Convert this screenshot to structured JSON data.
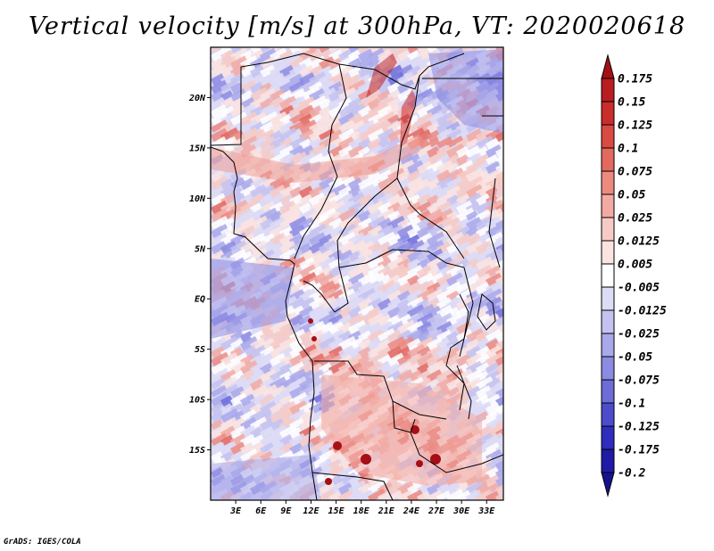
{
  "title": "Vertical velocity [m/s] at 300hPa, VT: 2020020618",
  "credit": "GrADS: IGES/COLA",
  "map": {
    "lon_range": [
      0,
      35
    ],
    "lat_range": [
      -20,
      25
    ],
    "lat_ticks": [
      "20N",
      "15N",
      "10N",
      "5N",
      "EQ",
      "5S",
      "10S",
      "15S"
    ],
    "lon_ticks": [
      "3E",
      "6E",
      "9E",
      "12E",
      "15E",
      "18E",
      "21E",
      "24E",
      "27E",
      "30E",
      "33E"
    ]
  },
  "colorbar": {
    "labels": [
      "0.175",
      "0.15",
      "0.125",
      "0.1",
      "0.075",
      "0.05",
      "0.025",
      "0.0125",
      "0.005",
      "-0.005",
      "-0.0125",
      "-0.025",
      "-0.05",
      "-0.075",
      "-0.1",
      "-0.125",
      "-0.175",
      "-0.2"
    ],
    "colors": [
      "#a50f15",
      "#b81d22",
      "#cb2c2c",
      "#d94a43",
      "#e3695f",
      "#ec8a80",
      "#f2aaa2",
      "#f7cbc5",
      "#fbe4e0",
      "#ffffff",
      "#dddcf6",
      "#c4c3f0",
      "#a9a8ea",
      "#8c8be2",
      "#6d6cd9",
      "#4d4ccd",
      "#2f2dbd",
      "#1f1ba7",
      "#16128f"
    ]
  }
}
